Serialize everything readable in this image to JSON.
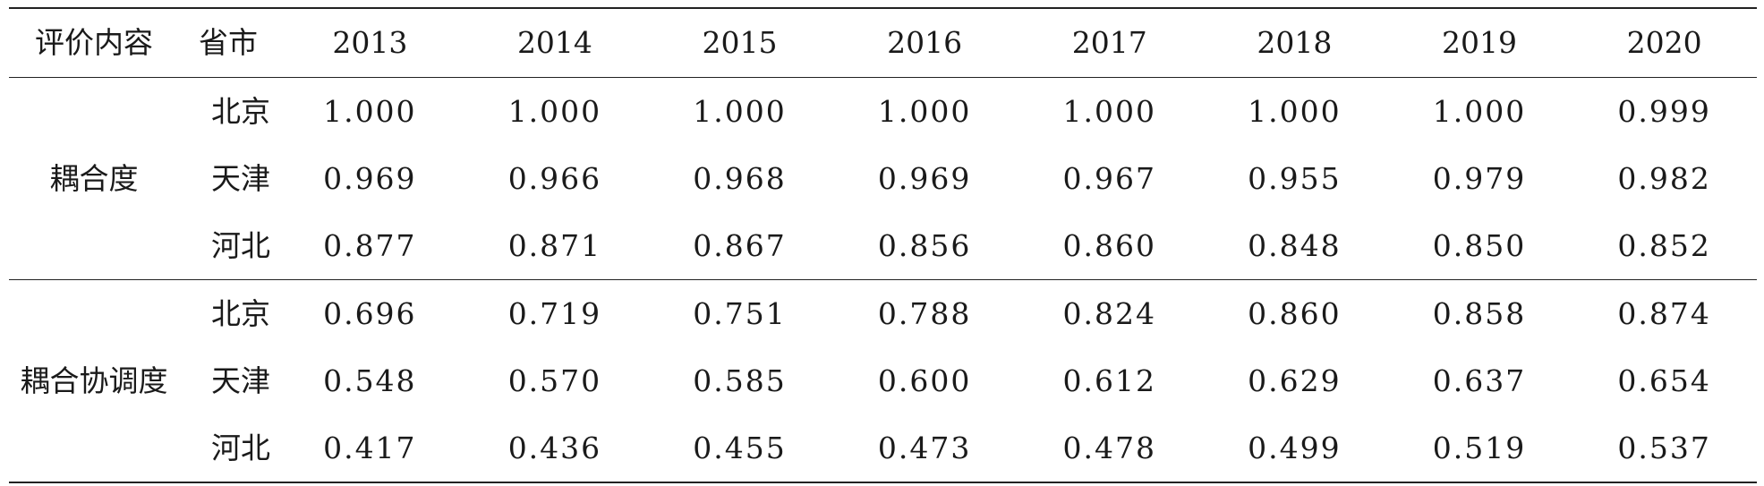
{
  "table": {
    "headers": [
      "评价内容",
      "省市",
      "2013",
      "2014",
      "2015",
      "2016",
      "2017",
      "2018",
      "2019",
      "2020"
    ],
    "groups": [
      {
        "label": "耦合度",
        "rows": [
          {
            "province": "北京",
            "values": [
              "1.000",
              "1.000",
              "1.000",
              "1.000",
              "1.000",
              "1.000",
              "1.000",
              "0.999"
            ]
          },
          {
            "province": "天津",
            "values": [
              "0.969",
              "0.966",
              "0.968",
              "0.969",
              "0.967",
              "0.955",
              "0.979",
              "0.982"
            ]
          },
          {
            "province": "河北",
            "values": [
              "0.877",
              "0.871",
              "0.867",
              "0.856",
              "0.860",
              "0.848",
              "0.850",
              "0.852"
            ]
          }
        ]
      },
      {
        "label": "耦合协调度",
        "rows": [
          {
            "province": "北京",
            "values": [
              "0.696",
              "0.719",
              "0.751",
              "0.788",
              "0.824",
              "0.860",
              "0.858",
              "0.874"
            ]
          },
          {
            "province": "天津",
            "values": [
              "0.548",
              "0.570",
              "0.585",
              "0.600",
              "0.612",
              "0.629",
              "0.637",
              "0.654"
            ]
          },
          {
            "province": "河北",
            "values": [
              "0.417",
              "0.436",
              "0.455",
              "0.473",
              "0.478",
              "0.499",
              "0.519",
              "0.537"
            ]
          }
        ]
      }
    ]
  }
}
